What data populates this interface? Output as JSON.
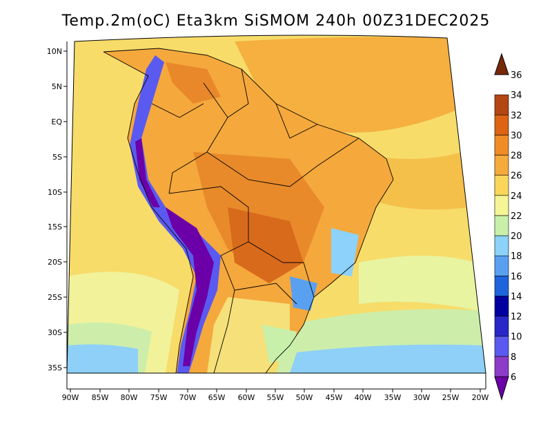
{
  "title": "Temp.2m(oC) Eta3km SiSMOM 240h 00Z31DEC2025",
  "axes": {
    "lat_labels": [
      "10N",
      "5N",
      "EQ",
      "5S",
      "10S",
      "15S",
      "20S",
      "25S",
      "30S",
      "35S"
    ],
    "lon_labels": [
      "90W",
      "85W",
      "80W",
      "75W",
      "70W",
      "65W",
      "60W",
      "55W",
      "50W",
      "45W",
      "40W",
      "35W",
      "30W",
      "25W",
      "20W"
    ]
  },
  "colorbar": {
    "levels": [
      6,
      8,
      10,
      12,
      14,
      16,
      18,
      20,
      22,
      24,
      26,
      28,
      30,
      32,
      34,
      36
    ],
    "colors": [
      "#6b00a8",
      "#8c3cc8",
      "#5a5af0",
      "#2828c8",
      "#0000a0",
      "#1e64dc",
      "#5aa0f0",
      "#8cd2fa",
      "#c8f0aa",
      "#f5f596",
      "#fad75a",
      "#f5aa3c",
      "#f08c28",
      "#dc6414",
      "#b44614",
      "#78280a"
    ]
  }
}
